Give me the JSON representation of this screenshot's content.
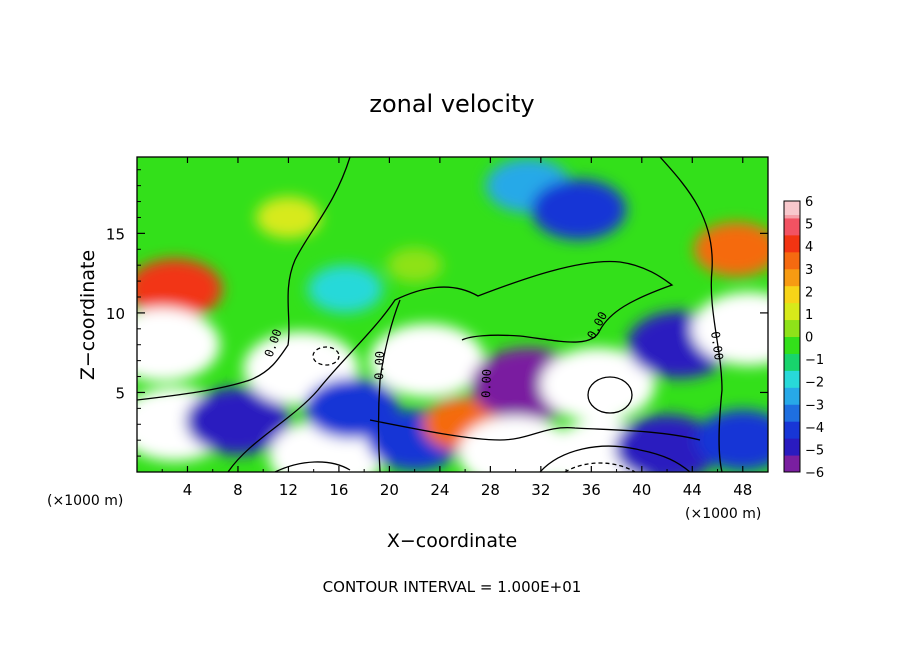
{
  "chart_data": {
    "type": "heatmap",
    "title": "zonal velocity",
    "xlabel": "X−coordinate",
    "ylabel": "Z−coordinate",
    "x_unit_left": "(×1000 m)",
    "x_unit_right": "(×1000 m)",
    "footer": "CONTOUR INTERVAL = 1.000E+01",
    "xlim": [
      0,
      50
    ],
    "ylim": [
      0,
      19.8
    ],
    "x_ticks": [
      4,
      8,
      12,
      16,
      20,
      24,
      28,
      32,
      36,
      40,
      44,
      48
    ],
    "y_ticks": [
      5,
      10,
      15
    ],
    "colorbar": {
      "min": -6,
      "max": 6,
      "ticks": [
        6,
        5,
        4,
        3,
        2,
        1,
        0,
        -1,
        -2,
        -3,
        -4,
        -5,
        -6
      ],
      "colors": [
        "#7a1fa0",
        "#2a1bbf",
        "#1836d6",
        "#1e6fe0",
        "#27a9e8",
        "#28d9d9",
        "#18d46c",
        "#33e01a",
        "#8ee219",
        "#d7ea1a",
        "#f7d418",
        "#f79b12",
        "#f56a10",
        "#f23412",
        "#f25262",
        "#f5a0a8"
      ]
    },
    "contour_labels": [
      "0.00",
      "0.00",
      "0.00",
      "0.00",
      "0.00"
    ],
    "features": [
      {
        "x": 3,
        "z": 11.5,
        "value": 4
      },
      {
        "x": 2,
        "z": 8,
        "value": 6
      },
      {
        "x": 3,
        "z": 3,
        "value": 6
      },
      {
        "x": 8,
        "z": 3.2,
        "value": -5
      },
      {
        "x": 13,
        "z": 6.5,
        "value": 6
      },
      {
        "x": 15,
        "z": 1,
        "value": 6
      },
      {
        "x": 17,
        "z": 4,
        "value": -4
      },
      {
        "x": 23,
        "z": 7,
        "value": 6
      },
      {
        "x": 22,
        "z": 2,
        "value": -4
      },
      {
        "x": 26,
        "z": 3,
        "value": 3
      },
      {
        "x": 31,
        "z": 5.5,
        "value": -6
      },
      {
        "x": 36.5,
        "z": 5.5,
        "value": 6
      },
      {
        "x": 30,
        "z": 1.2,
        "value": 6
      },
      {
        "x": 37,
        "z": 1,
        "value": 6
      },
      {
        "x": 42,
        "z": 1.5,
        "value": -5
      },
      {
        "x": 43,
        "z": 8,
        "value": -5
      },
      {
        "x": 48.5,
        "z": 9,
        "value": 6
      },
      {
        "x": 48,
        "z": 2,
        "value": -4
      },
      {
        "x": 31,
        "z": 18,
        "value": -3
      },
      {
        "x": 35,
        "z": 16.5,
        "value": -4
      },
      {
        "x": 16.5,
        "z": 11.5,
        "value": -2
      },
      {
        "x": 47.5,
        "z": 14,
        "value": 3
      },
      {
        "x": 12,
        "z": 16,
        "value": 1
      },
      {
        "x": 22,
        "z": 13,
        "value": 0
      }
    ]
  }
}
